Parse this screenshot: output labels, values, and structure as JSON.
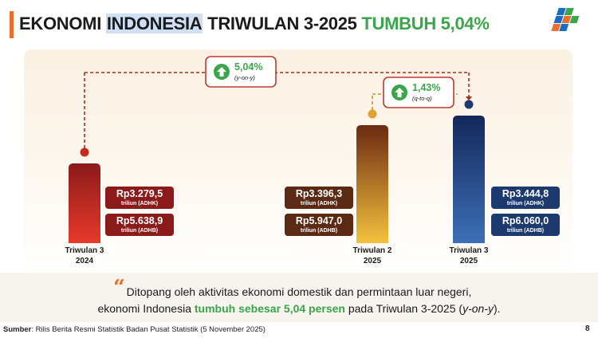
{
  "header": {
    "title_part1": "EKONOMI ",
    "title_highlight": "INDONESIA",
    "title_part2": " TRIWULAN 3-2025 ",
    "title_green": "TUMBUH 5,04%",
    "logo_icon": "bps-logo-icon"
  },
  "colors": {
    "accent_orange": "#e8712a",
    "green": "#3aa54a",
    "dark_red": "#8b1a1a",
    "dark_brown": "#5a2a14",
    "navy": "#1c3a6e"
  },
  "chart_data": {
    "type": "bar",
    "categories": [
      {
        "line1": "Triwulan 3",
        "line2": "2024"
      },
      {
        "line1": "Triwulan 2",
        "line2": "2025"
      },
      {
        "line1": "Triwulan 3",
        "line2": "2025"
      }
    ],
    "values_adhk": [
      3279.5,
      3396.3,
      3444.8
    ],
    "values_adhb": [
      5638.9,
      5947.0,
      6060.0
    ],
    "labels_adhk": [
      "Rp3.279,5",
      "Rp3.396,3",
      "Rp3.444,8"
    ],
    "labels_adhb": [
      "Rp5.638,9",
      "Rp5.947,0",
      "Rp6.060,0"
    ],
    "unit_adhk": "triliun (ADHK)",
    "unit_adhb": "triliun (ADHB)",
    "bar_colors": [
      {
        "top": "#8b1a1a",
        "bottom": "#e83a2a"
      },
      {
        "top": "#6b2a12",
        "bottom": "#f4c23c"
      },
      {
        "top": "#14285a",
        "bottom": "#3d6fb6"
      }
    ],
    "label_box_colors": [
      "#8b1a1a",
      "#5a2a14",
      "#1c3a6e"
    ],
    "growth": [
      {
        "value": "5,04%",
        "basis": "(y-on-y)",
        "from": 0,
        "to": 2
      },
      {
        "value": "1,43%",
        "basis": "(q-to-q)",
        "from": 1,
        "to": 2
      }
    ]
  },
  "quote": {
    "line1": "Ditopang oleh aktivitas ekonomi domestik dan permintaan luar negeri,",
    "line2_a": "ekonomi Indonesia ",
    "line2_em": "tumbuh sebesar 5,04 persen",
    "line2_b": " pada Triwulan 3-2025 (",
    "line2_i": "y-on-y",
    "line2_c": ")."
  },
  "footer": {
    "source_label": "Sumber",
    "source_text": ": Rilis Berita Resmi Statistik Badan Pusat Statistik (5 November 2025)",
    "page_number": "8"
  }
}
